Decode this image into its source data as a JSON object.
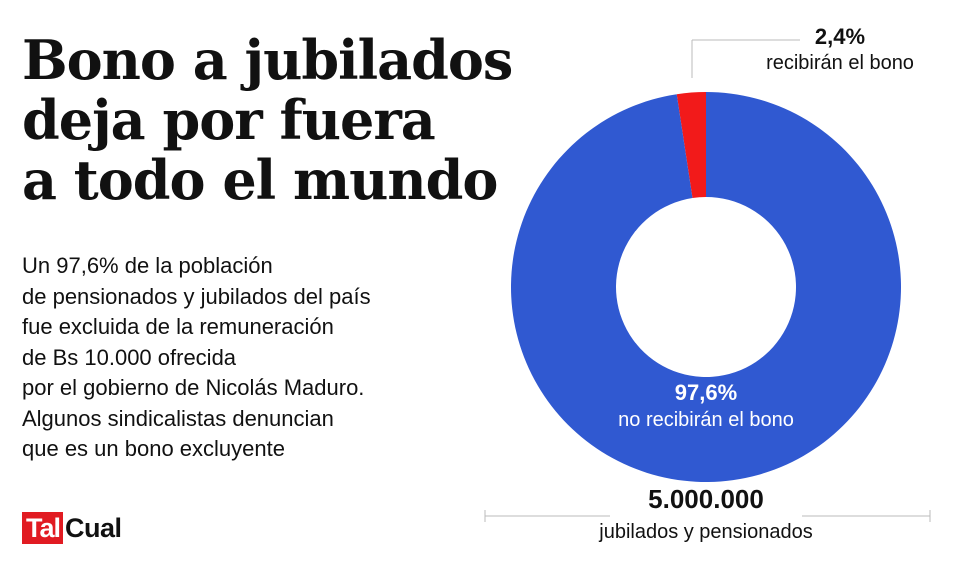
{
  "headline": {
    "lines": [
      "Bono a jubilados",
      "deja por fuera",
      "a todo el mundo"
    ]
  },
  "description": {
    "lines": [
      "Un 97,6% de la población",
      "de pensionados y jubilados del país",
      "fue excluida de la remuneración",
      "de Bs 10.000 ofrecida",
      "por el gobierno de Nicolás Maduro.",
      "Algunos sindicalistas denuncian",
      "que es un bono excluyente"
    ]
  },
  "logo": {
    "part1": "Tal",
    "part2": "Cual",
    "part1_bg": "#e11b22"
  },
  "chart_data": {
    "type": "pie",
    "variant": "donut",
    "slices": [
      {
        "value": 2.4,
        "value_label": "2,4%",
        "label": "recibirán el bono",
        "color": "#f21a1a"
      },
      {
        "value": 97.6,
        "value_label": "97,6%",
        "label": "no recibirán el bono",
        "color": "#3059d1"
      }
    ],
    "total": {
      "value": 5000000,
      "value_label": "5.000.000",
      "label": "jubilados y pensionados"
    }
  }
}
